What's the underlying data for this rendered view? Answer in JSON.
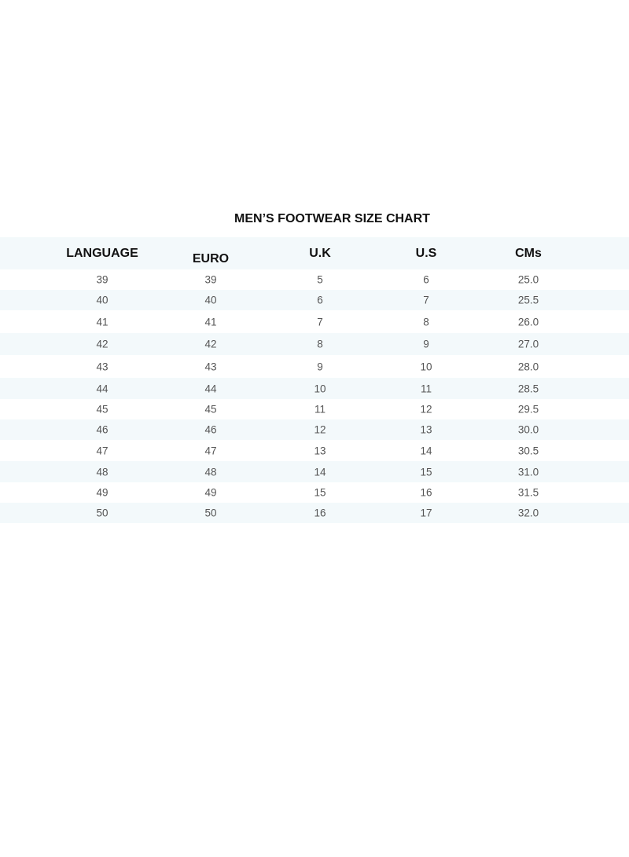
{
  "title": "MEN’S FOOTWEAR SIZE CHART",
  "columns": [
    "LANGUAGE",
    "EURO",
    "U.K",
    "U.S",
    "CMs"
  ],
  "rows": [
    [
      "39",
      "39",
      "5",
      "6",
      "25.0"
    ],
    [
      "40",
      "40",
      "6",
      "7",
      "25.5"
    ],
    [
      "41",
      "41",
      "7",
      "8",
      "26.0"
    ],
    [
      "42",
      "42",
      "8",
      "9",
      "27.0"
    ],
    [
      "43",
      "43",
      "9",
      "10",
      "28.0"
    ],
    [
      "44",
      "44",
      "10",
      "11",
      "28.5"
    ],
    [
      "45",
      "45",
      "11",
      "12",
      "29.5"
    ],
    [
      "46",
      "46",
      "12",
      "13",
      "30.0"
    ],
    [
      "47",
      "47",
      "13",
      "14",
      "30.5"
    ],
    [
      "48",
      "48",
      "14",
      "15",
      "31.0"
    ],
    [
      "49",
      "49",
      "15",
      "16",
      "31.5"
    ],
    [
      "50",
      "50",
      "16",
      "17",
      "32.0"
    ]
  ],
  "colors": {
    "band": "#f3f9fb",
    "header_text": "#111111",
    "cell_text": "#555555"
  }
}
